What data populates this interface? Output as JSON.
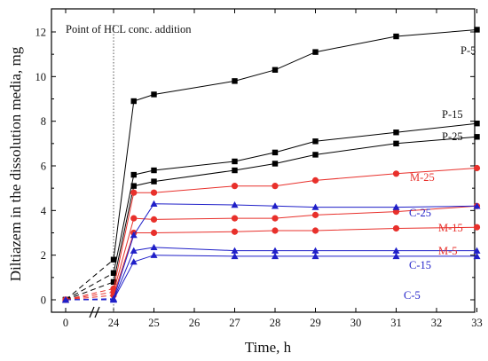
{
  "chart_data": {
    "type": "line",
    "xlabel": "Time, h",
    "ylabel": "Diltiazem in the dissolution media, mg",
    "annotation": "Point of HCL conc. addition",
    "annotation_x": 24,
    "ylim": [
      -0.4,
      13.0
    ],
    "y_ticks": [
      "0",
      "2",
      "4",
      "6",
      "8",
      "10",
      "12"
    ],
    "x_ticks": [
      "0",
      "24",
      "25",
      "26",
      "27",
      "28",
      "29",
      "30",
      "31",
      "32",
      "33"
    ],
    "axis_break": "between 0 and 24 h",
    "grid": false,
    "colors": {
      "P": "#000000",
      "M": "#e8302b",
      "C": "#1f1fc8"
    },
    "series": [
      {
        "name": "P-5",
        "group": "P",
        "marker": "square",
        "x": [
          0,
          24,
          24.5,
          25,
          27,
          28,
          29,
          31,
          33
        ],
        "y": [
          0,
          1.8,
          8.9,
          9.2,
          9.8,
          10.3,
          11.1,
          11.8,
          12.1
        ]
      },
      {
        "name": "P-15",
        "group": "P",
        "marker": "square",
        "x": [
          0,
          24,
          24.5,
          25,
          27,
          28,
          29,
          31,
          33
        ],
        "y": [
          0,
          1.2,
          5.6,
          5.8,
          6.2,
          6.6,
          7.1,
          7.5,
          7.9
        ]
      },
      {
        "name": "P-25",
        "group": "P",
        "marker": "square",
        "x": [
          0,
          24,
          24.5,
          25,
          27,
          28,
          29,
          31,
          33
        ],
        "y": [
          0,
          0.8,
          5.1,
          5.3,
          5.8,
          6.1,
          6.5,
          7.0,
          7.3
        ]
      },
      {
        "name": "M-25",
        "group": "M",
        "marker": "circle",
        "x": [
          0,
          24,
          24.5,
          25,
          27,
          28,
          29,
          31,
          33
        ],
        "y": [
          0,
          0.5,
          4.8,
          4.8,
          5.1,
          5.1,
          5.35,
          5.65,
          5.9
        ]
      },
      {
        "name": "M-15",
        "group": "M",
        "marker": "circle",
        "x": [
          0,
          24,
          24.5,
          25,
          27,
          28,
          29,
          31,
          33
        ],
        "y": [
          0,
          0.35,
          3.65,
          3.6,
          3.65,
          3.65,
          3.8,
          3.95,
          4.2
        ]
      },
      {
        "name": "M-5",
        "group": "M",
        "marker": "circle",
        "x": [
          0,
          24,
          24.5,
          25,
          27,
          28,
          29,
          31,
          33
        ],
        "y": [
          0,
          0.2,
          3.0,
          3.0,
          3.05,
          3.1,
          3.1,
          3.2,
          3.25
        ]
      },
      {
        "name": "C-25",
        "group": "C",
        "marker": "triangle",
        "x": [
          0,
          24,
          24.5,
          25,
          27,
          28,
          29,
          31,
          33
        ],
        "y": [
          0,
          0.05,
          2.9,
          4.3,
          4.25,
          4.2,
          4.15,
          4.15,
          4.2
        ]
      },
      {
        "name": "C-15",
        "group": "C",
        "marker": "triangle",
        "x": [
          0,
          24,
          24.5,
          25,
          27,
          28,
          29,
          31,
          33
        ],
        "y": [
          0,
          0.02,
          2.2,
          2.35,
          2.2,
          2.2,
          2.2,
          2.2,
          2.2
        ]
      },
      {
        "name": "C-5",
        "group": "C",
        "marker": "triangle",
        "x": [
          0,
          24,
          24.5,
          25,
          27,
          28,
          29,
          31,
          33
        ],
        "y": [
          0,
          0.0,
          1.7,
          2.0,
          1.95,
          1.95,
          1.95,
          1.95,
          1.95
        ]
      }
    ]
  }
}
